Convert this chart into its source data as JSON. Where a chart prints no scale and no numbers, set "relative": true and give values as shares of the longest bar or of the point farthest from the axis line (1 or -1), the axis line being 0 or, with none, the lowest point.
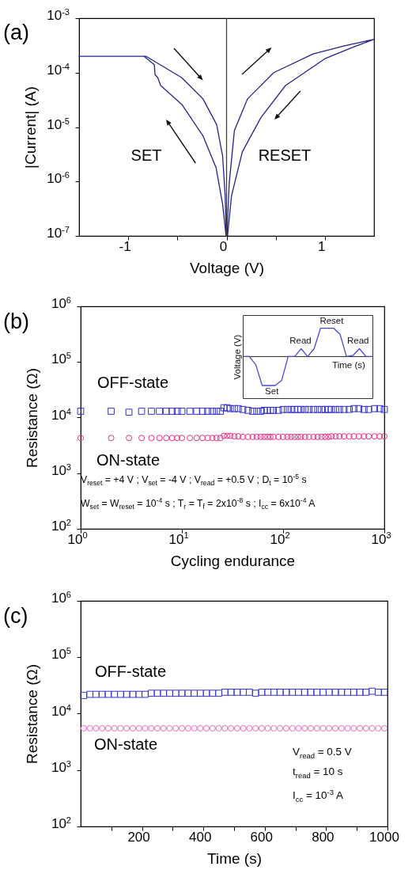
{
  "chart_data": [
    {
      "type": "line",
      "title": "(a)",
      "xlabel": "Voltage (V)",
      "ylabel": "|Current| (A)",
      "log": "y",
      "xlim": [
        -1.5,
        1.5
      ],
      "xticks": [
        -1,
        {
          "value": -0.5,
          "label": null
        },
        0,
        {
          "value": 0.5,
          "label": null
        },
        1
      ],
      "ylim": [
        1e-07,
        0.001
      ],
      "yticks": [
        {
          "value": 1e-07,
          "label": "10$^{-7}$"
        },
        {
          "value": 1e-06,
          "label": "10$^{-6}$"
        },
        {
          "value": 1e-05,
          "label": "10$^{-5}$"
        },
        {
          "value": 0.0001,
          "label": "10$^{-4}$"
        },
        {
          "value": 0.001,
          "label": "10$^{-3}$"
        }
      ],
      "marker": "none",
      "line_style": "solid",
      "series": [
        {
          "color": "#23238a",
          "x": [
            -0.005,
            -0.04,
            -0.107,
            -0.24,
            -0.455,
            -0.67,
            -0.7,
            -0.727,
            -0.735,
            -0.84,
            -1.5,
            -0.82,
            -0.457,
            -0.24,
            -0.1,
            -0.04,
            -0.014,
            -0.003
          ],
          "values": [
            1e-07,
            3.8e-07,
            1.8e-06,
            6.9e-06,
            2.6e-05,
            5.8e-05,
            8.1e-05,
            9.1e-05,
            0.00014,
            0.0002,
            0.0002,
            0.0002,
            8.1e-05,
            3.3e-05,
            1.1e-05,
            2.9e-06,
            5.4e-07,
            1e-07
          ]
        },
        {
          "color": "#23238a",
          "x": [
            0.003,
            0.027,
            0.08,
            0.214,
            0.48,
            0.88,
            1.2,
            1.5,
            1.28,
            1.0,
            0.6,
            0.35,
            0.16,
            0.05,
            0.01
          ],
          "values": [
            1e-07,
            9.3e-07,
            8.7e-06,
            3.3e-05,
            0.0001,
            0.00022,
            0.00031,
            0.00041,
            0.00029,
            0.00018,
            5.8e-05,
            1.5e-05,
            3.5e-06,
            5.4e-07,
            1e-07
          ]
        }
      ],
      "ref_lines": [
        {
          "axis": "x",
          "value": 0,
          "color": "#404040"
        }
      ],
      "annotations": [
        "SET",
        "RESET"
      ]
    },
    {
      "type": "scatter",
      "title": "(b)",
      "xlabel": "Cycling endurance",
      "ylabel": "Resistance (Ω)",
      "log": "xy",
      "xlim": [
        1,
        1000
      ],
      "xticks": [
        {
          "value": 1,
          "label": "10$^{0}$"
        },
        {
          "value": 10,
          "label": "10$^{1}$"
        },
        {
          "value": 100,
          "label": "10$^{2}$"
        },
        {
          "value": 1000,
          "label": "10$^{3}$"
        }
      ],
      "ylim": [
        100,
        1000000
      ],
      "yticks": [
        {
          "value": 100,
          "label": "10$^{2}$"
        },
        {
          "value": 1000,
          "label": "10$^{3}$"
        },
        {
          "value": 10000,
          "label": "10$^{4}$"
        },
        {
          "value": 100000,
          "label": "10$^{5}$"
        },
        {
          "value": 1000000,
          "label": "10$^{6}$"
        }
      ],
      "x": [
        1,
        2,
        3,
        4,
        5,
        6,
        7,
        8,
        9,
        10,
        12,
        14,
        16,
        18,
        20,
        22,
        24,
        26,
        28,
        30,
        33,
        36,
        40,
        45,
        50,
        55,
        60,
        65,
        70,
        75,
        80,
        90,
        100,
        110,
        120,
        130,
        140,
        150,
        165,
        180,
        200,
        220,
        240,
        260,
        280,
        300,
        330,
        360,
        400,
        450,
        500,
        560,
        630,
        700,
        800,
        900,
        1000
      ],
      "series": [
        {
          "color": "#2f2fd0",
          "marker": "square",
          "values": [
            13000,
            13000,
            12500,
            13000,
            13000,
            13000,
            13000,
            13000,
            13000,
            13000,
            13000,
            13000,
            13000,
            13000,
            13000,
            13000,
            13000,
            15000,
            15000,
            14500,
            14500,
            14500,
            14000,
            13500,
            13000,
            13000,
            13000,
            13500,
            13500,
            13500,
            13500,
            13500,
            14000,
            14000,
            14000,
            14000,
            14000,
            14000,
            14000,
            14000,
            14000,
            14000,
            14000,
            14000,
            14000,
            14000,
            14000,
            14000,
            14000,
            14000,
            14500,
            14500,
            14000,
            14000,
            14500,
            14500,
            14000
          ]
        },
        {
          "color": "#e8307e",
          "marker": "circle",
          "values": [
            4300,
            4300,
            4300,
            4300,
            4300,
            4300,
            4300,
            4300,
            4300,
            4300,
            4300,
            4300,
            4300,
            4300,
            4300,
            4300,
            4300,
            4700,
            4700,
            4700,
            4600,
            4600,
            4500,
            4500,
            4500,
            4500,
            4500,
            4500,
            4500,
            4500,
            4500,
            4500,
            4500,
            4500,
            4500,
            4500,
            4500,
            4500,
            4500,
            4500,
            4500,
            4500,
            4500,
            4500,
            4500,
            4600,
            4600,
            4600,
            4600,
            4600,
            4600,
            4600,
            4600,
            4600,
            4600,
            4600,
            4600
          ]
        }
      ],
      "annotations": [
        "OFF-state",
        "ON-state",
        "V$_{reset}$ = +4 V ; V$_{set}$ = -4 V ; V$_{read}$ = +0.5 V ; D$_{t}$ = 10$^{-5}$ s",
        "W$_{set}$ = W$_{reset}$ = 10$^{-4}$ s ;  T$_{r}$ = T$_{f}$ = 2x10$^{-8}$ s ; I$_{cc}$ = 6x10$^{-4}$ A"
      ]
    },
    {
      "type": "line",
      "relative": true,
      "xlabel": "Time (s)",
      "ylabel": "Voltage (V)",
      "color": "#4a4ad0",
      "categories": [
        null,
        null,
        null,
        null,
        null,
        null,
        null,
        null,
        null,
        null,
        null,
        null,
        null,
        null,
        null,
        null,
        null,
        null,
        null,
        null,
        null
      ],
      "values": [
        0,
        0,
        -0.28,
        -1,
        -1,
        -1,
        -0.82,
        0,
        0,
        0.27,
        0,
        0.27,
        0.98,
        0.98,
        0.98,
        0.77,
        0,
        0.04,
        0.27,
        0,
        0
      ],
      "annotations": [
        "Set",
        "Read",
        "Reset",
        "Read"
      ]
    },
    {
      "type": "scatter",
      "title": "(c)",
      "xlabel": "Time (s)",
      "ylabel": "Resistance (Ω)",
      "log": "y",
      "xlim": [
        0,
        1000
      ],
      "xticks": [
        {
          "value": 100,
          "label": null
        },
        200,
        {
          "value": 300,
          "label": null
        },
        400,
        {
          "value": 500,
          "label": null
        },
        600,
        {
          "value": 700,
          "label": null
        },
        800,
        {
          "value": 900,
          "label": null
        },
        1000
      ],
      "ylim": [
        100,
        1000000
      ],
      "yticks": [
        {
          "value": 100,
          "label": "10$^{2}$"
        },
        {
          "value": 1000,
          "label": "10$^{3}$"
        },
        {
          "value": 10000,
          "label": "10$^{4}$"
        },
        {
          "value": 100000,
          "label": "10$^{5}$"
        },
        {
          "value": 1000000,
          "label": "10$^{6}$"
        }
      ],
      "x": [
        10,
        30,
        50,
        70,
        90,
        110,
        130,
        150,
        170,
        190,
        210,
        230,
        250,
        270,
        290,
        310,
        330,
        350,
        370,
        390,
        410,
        430,
        450,
        470,
        490,
        510,
        530,
        550,
        570,
        590,
        610,
        630,
        650,
        670,
        690,
        710,
        730,
        750,
        770,
        790,
        810,
        830,
        850,
        870,
        890,
        910,
        930,
        950,
        970,
        990
      ],
      "series": [
        {
          "color": "#3535c8",
          "marker": "square",
          "values": [
            21000,
            22000,
            22000,
            22000,
            22000,
            22000,
            22000,
            22000,
            22000,
            22000,
            22000,
            23000,
            23000,
            23000,
            23000,
            23000,
            23000,
            23000,
            23000,
            23000,
            23000,
            23000,
            23000,
            24000,
            24000,
            24000,
            24000,
            24000,
            23000,
            24000,
            24000,
            24000,
            24000,
            24000,
            24000,
            24000,
            24000,
            24000,
            24000,
            24000,
            24000,
            24000,
            24000,
            24000,
            24000,
            24000,
            24000,
            25000,
            24000,
            24000
          ]
        },
        {
          "color": "#e070b8",
          "marker": "circle",
          "values": [
            5500,
            5500,
            5500,
            5500,
            5500,
            5500,
            5500,
            5500,
            5500,
            5500,
            5500,
            5500,
            5500,
            5500,
            5500,
            5500,
            5500,
            5500,
            5500,
            5500,
            5500,
            5500,
            5500,
            5500,
            5500,
            5500,
            5500,
            5500,
            5500,
            5500,
            5500,
            5500,
            5500,
            5500,
            5500,
            5500,
            5500,
            5500,
            5500,
            5500,
            5500,
            5500,
            5500,
            5500,
            5500,
            5500,
            5500,
            5500,
            5500,
            5500
          ]
        }
      ],
      "annotations": [
        "OFF-state",
        "ON-state",
        "V$_{read}$ = 0.5 V",
        "t$_{read}$ = 10 s",
        "I$_{cc}$ = 10$^{-3}$ A"
      ]
    }
  ]
}
